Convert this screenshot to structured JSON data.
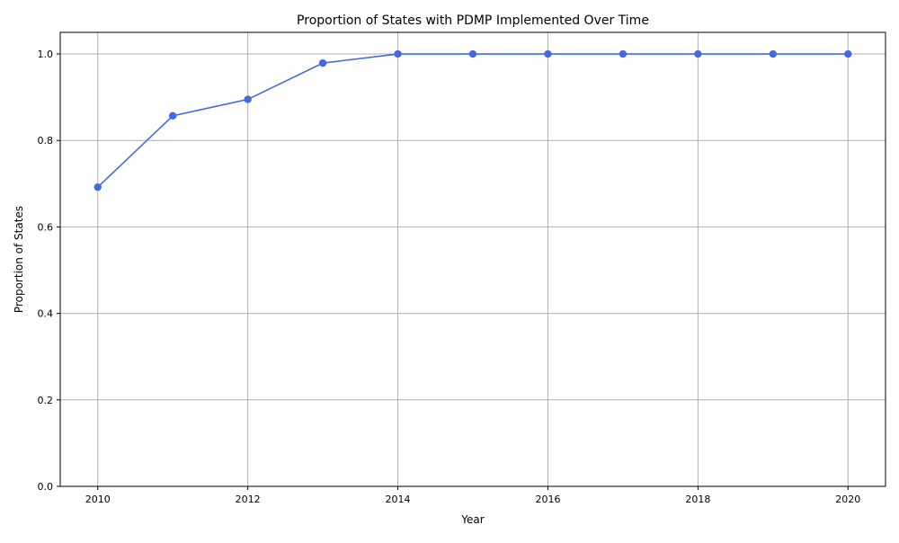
{
  "chart_data": {
    "type": "line",
    "title": "Proportion of States with PDMP Implemented Over Time",
    "xlabel": "Year",
    "ylabel": "Proportion of States",
    "x": [
      2010,
      2011,
      2012,
      2013,
      2014,
      2015,
      2016,
      2017,
      2018,
      2019,
      2020
    ],
    "series": [
      {
        "values": [
          0.692,
          0.857,
          0.895,
          0.979,
          1.0,
          1.0,
          1.0,
          1.0,
          1.0,
          1.0,
          1.0
        ],
        "color": "#4169e1"
      }
    ],
    "xlim": [
      2009.5,
      2020.5
    ],
    "ylim": [
      0.0,
      1.05
    ],
    "xticks": [
      2010,
      2012,
      2014,
      2016,
      2018,
      2020
    ],
    "yticks": [
      0.0,
      0.2,
      0.4,
      0.6,
      0.8,
      1.0
    ],
    "xtick_labels": [
      "2010",
      "2012",
      "2014",
      "2016",
      "2018",
      "2020"
    ],
    "ytick_labels": [
      "0.0",
      "0.2",
      "0.4",
      "0.6",
      "0.8",
      "1.0"
    ],
    "grid": true,
    "grid_color": "#b0b0b0",
    "marker": "circle",
    "legend": false
  }
}
